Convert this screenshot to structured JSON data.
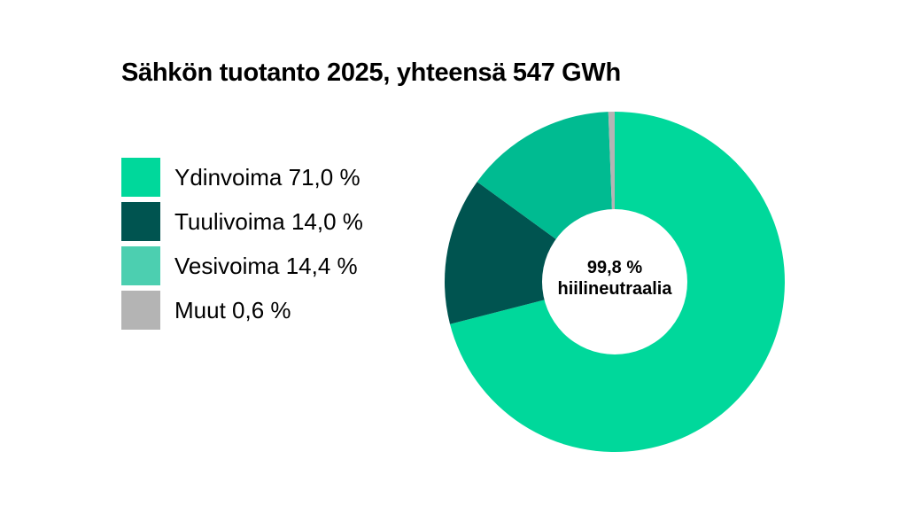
{
  "chart_data": {
    "type": "pie",
    "title": "Sähkön tuotanto 2025, yhteensä 547 GWh",
    "categories": [
      "Ydinvoima",
      "Tuulivoima",
      "Vesivoima",
      "Muut"
    ],
    "values": [
      71.0,
      14.0,
      14.4,
      0.6
    ],
    "unit": "%",
    "colors": [
      "#00d89b",
      "#005450",
      "#00bb91",
      "#b4b4b4"
    ],
    "donut": true,
    "center_text": [
      "99,8 %",
      "hiilineutraalia"
    ],
    "legend": {
      "placement": "left",
      "items": [
        {
          "label": "Ydinvoima 71,0 %",
          "color": "#00d89b"
        },
        {
          "label": "Tuulivoima 14,0 %",
          "color": "#005450"
        },
        {
          "label": "Vesivoima 14,4 %",
          "color": "#4ccfb0"
        },
        {
          "label": "Muut 0,6 %",
          "color": "#b4b4b4"
        }
      ]
    }
  }
}
